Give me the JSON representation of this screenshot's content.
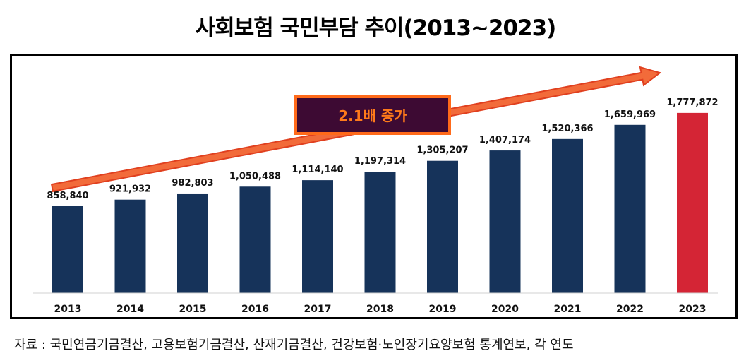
{
  "title": "사회보험 국민부담 추이(2013~2023)",
  "source_note": "자료 : 국민연금기금결산, 고용보험기금결산, 산재기금결산, 건강보험·노인장기요양보험 통계연보, 각 연도",
  "callout": {
    "text": "2.1배 증가"
  },
  "colors": {
    "bar": "#16335a",
    "highlight_bar": "#d42535",
    "arrow_fill": "#f26b3a",
    "arrow_stroke": "#e0401f",
    "callout_fill": "#3d0a33",
    "callout_border": "#ff6a1a",
    "callout_text": "#ff7a1a"
  },
  "chart_data": {
    "type": "bar",
    "categories": [
      "2013",
      "2014",
      "2015",
      "2016",
      "2017",
      "2018",
      "2019",
      "2020",
      "2021",
      "2022",
      "2023"
    ],
    "values": [
      858840,
      921932,
      982803,
      1050488,
      1114140,
      1197314,
      1305207,
      1407174,
      1520366,
      1659969,
      1777872
    ],
    "value_labels": [
      "858,840",
      "921,932",
      "982,803",
      "1,050,488",
      "1,114,140",
      "1,197,314",
      "1,305,207",
      "1,407,174",
      "1,520,366",
      "1,659,969",
      "1,777,872"
    ],
    "highlight_category": "2023",
    "title": "",
    "xlabel": "",
    "ylabel": "",
    "grid": false,
    "legend": "none"
  }
}
